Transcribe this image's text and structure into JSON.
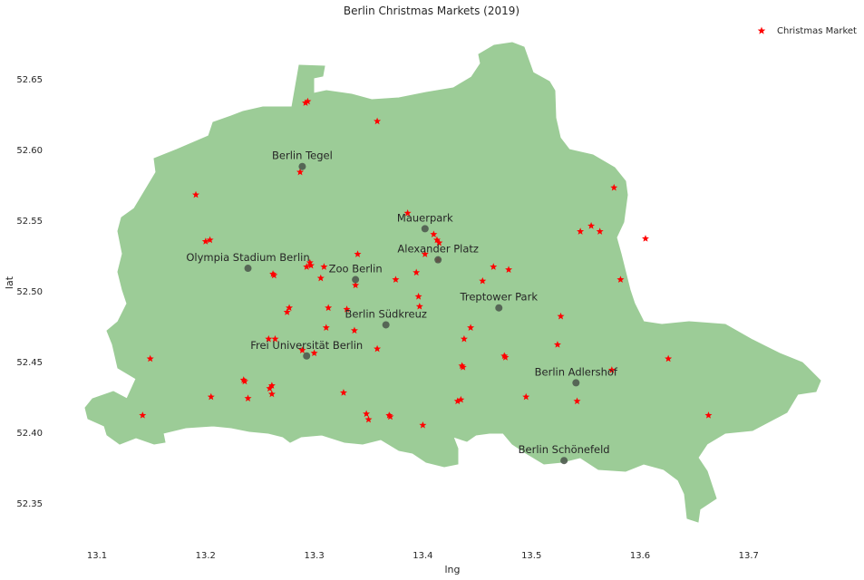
{
  "chart_data": {
    "type": "scatter",
    "title": "Berlin Christmas Markets (2019)",
    "xlabel": "lng",
    "ylabel": "lat",
    "xlim": [
      13.055,
      13.8
    ],
    "ylim": [
      52.32,
      52.69
    ],
    "x_ticks": [
      "13.1",
      "13.2",
      "13.3",
      "13.4",
      "13.5",
      "13.6",
      "13.7"
    ],
    "y_ticks": [
      "52.35",
      "52.40",
      "52.45",
      "52.50",
      "52.55",
      "52.60",
      "52.65"
    ],
    "grid": false,
    "legend_position": "top-right",
    "region_color": "#9ccc97",
    "series": [
      {
        "name": "Christmas Market",
        "color": "#ff0000",
        "marker": "star",
        "points": [
          [
            13.292,
            52.633
          ],
          [
            13.294,
            52.634
          ],
          [
            13.358,
            52.62
          ],
          [
            13.287,
            52.584
          ],
          [
            13.191,
            52.568
          ],
          [
            13.576,
            52.573
          ],
          [
            13.386,
            52.555
          ],
          [
            13.41,
            52.54
          ],
          [
            13.413,
            52.536
          ],
          [
            13.415,
            52.534
          ],
          [
            13.545,
            52.542
          ],
          [
            13.555,
            52.546
          ],
          [
            13.563,
            52.542
          ],
          [
            13.605,
            52.537
          ],
          [
            13.2,
            52.535
          ],
          [
            13.204,
            52.536
          ],
          [
            13.34,
            52.526
          ],
          [
            13.402,
            52.526
          ],
          [
            13.414,
            52.522
          ],
          [
            13.293,
            52.517
          ],
          [
            13.296,
            52.52
          ],
          [
            13.297,
            52.518
          ],
          [
            13.309,
            52.517
          ],
          [
            13.262,
            52.512
          ],
          [
            13.263,
            52.511
          ],
          [
            13.306,
            52.509
          ],
          [
            13.394,
            52.513
          ],
          [
            13.465,
            52.517
          ],
          [
            13.479,
            52.515
          ],
          [
            13.375,
            52.508
          ],
          [
            13.338,
            52.504
          ],
          [
            13.455,
            52.507
          ],
          [
            13.582,
            52.508
          ],
          [
            13.396,
            52.496
          ],
          [
            13.397,
            52.489
          ],
          [
            13.277,
            52.488
          ],
          [
            13.275,
            52.485
          ],
          [
            13.313,
            52.488
          ],
          [
            13.33,
            52.487
          ],
          [
            13.527,
            52.482
          ],
          [
            13.311,
            52.474
          ],
          [
            13.337,
            52.472
          ],
          [
            13.444,
            52.474
          ],
          [
            13.258,
            52.466
          ],
          [
            13.264,
            52.466
          ],
          [
            13.438,
            52.466
          ],
          [
            13.524,
            52.462
          ],
          [
            13.289,
            52.458
          ],
          [
            13.3,
            52.456
          ],
          [
            13.358,
            52.459
          ],
          [
            13.149,
            52.452
          ],
          [
            13.475,
            52.454
          ],
          [
            13.476,
            52.453
          ],
          [
            13.626,
            52.452
          ],
          [
            13.436,
            52.447
          ],
          [
            13.437,
            52.446
          ],
          [
            13.574,
            52.444
          ],
          [
            13.235,
            52.437
          ],
          [
            13.236,
            52.436
          ],
          [
            13.261,
            52.433
          ],
          [
            13.259,
            52.431
          ],
          [
            13.261,
            52.427
          ],
          [
            13.327,
            52.428
          ],
          [
            13.205,
            52.425
          ],
          [
            13.239,
            52.424
          ],
          [
            13.495,
            52.425
          ],
          [
            13.432,
            52.422
          ],
          [
            13.435,
            52.423
          ],
          [
            13.542,
            52.422
          ],
          [
            13.142,
            52.412
          ],
          [
            13.348,
            52.413
          ],
          [
            13.35,
            52.409
          ],
          [
            13.369,
            52.412
          ],
          [
            13.37,
            52.411
          ],
          [
            13.4,
            52.405
          ],
          [
            13.663,
            52.412
          ]
        ]
      }
    ],
    "landmarks": [
      {
        "name": "Berlin Tegel",
        "lng": 13.289,
        "lat": 52.588
      },
      {
        "name": "Mauerpark",
        "lng": 13.402,
        "lat": 52.544
      },
      {
        "name": "Alexander Platz",
        "lng": 13.414,
        "lat": 52.522
      },
      {
        "name": "Olympia Stadium Berlin",
        "lng": 13.239,
        "lat": 52.516
      },
      {
        "name": "Zoo Berlin",
        "lng": 13.338,
        "lat": 52.508
      },
      {
        "name": "Treptower Park",
        "lng": 13.47,
        "lat": 52.488
      },
      {
        "name": "Berlin Südkreuz",
        "lng": 13.366,
        "lat": 52.476
      },
      {
        "name": "Frei Universität Berlin",
        "lng": 13.293,
        "lat": 52.454
      },
      {
        "name": "Berlin Adlershof",
        "lng": 13.541,
        "lat": 52.435
      },
      {
        "name": "Berlin Schönefeld",
        "lng": 13.53,
        "lat": 52.38
      }
    ],
    "landmark_color": "#4f5b4f"
  }
}
